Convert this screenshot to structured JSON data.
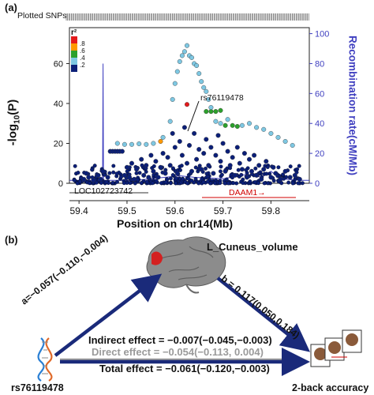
{
  "panel_a": {
    "label": "(a)",
    "plotted_snps_label": "Plotted SNPs",
    "r2_legend": {
      "title": "r²",
      "levels": [
        ".8",
        ".6",
        ".4",
        ".2"
      ],
      "colors": [
        "#e31a1c",
        "#ff9900",
        "#2ca02c",
        "#7ec8e3",
        "#0b1f78"
      ]
    },
    "y_left_label": "-log10(P)",
    "y_right_label": "Recombination rate(cM/Mb)",
    "lead_snp_label": "rs76119478",
    "genes": [
      {
        "name": "LOC102723742",
        "color": "#111111"
      },
      {
        "name": "DAAM1→",
        "color": "#d00000"
      }
    ],
    "accent_right_axis": "#4040c0"
  },
  "chart_data": {
    "type": "scatter",
    "title": "",
    "xlabel": "Position on chr14(Mb)",
    "ylabel": "-log10(P)",
    "y2label": "Recombination rate(cM/Mb)",
    "xlim": [
      59.38,
      59.88
    ],
    "ylim": [
      0,
      78
    ],
    "y2lim": [
      0,
      104
    ],
    "xticks": [
      "59.4",
      "59.5",
      "59.6",
      "59.7",
      "59.8"
    ],
    "xtick_values": [
      59.4,
      59.5,
      59.6,
      59.7,
      59.8
    ],
    "yticks": [
      0,
      20,
      40,
      60
    ],
    "y2ticks": [
      0,
      20,
      40,
      60,
      80,
      100
    ],
    "series": [
      {
        "r2": ">0.8",
        "color": "#e31a1c",
        "points": [
          [
            59.625,
            39.5
          ]
        ]
      },
      {
        "r2": "0.6-0.8",
        "color": "#ff9900",
        "points": [
          [
            59.57,
            21
          ]
        ]
      },
      {
        "r2": "0.4-0.6",
        "color": "#2ca02c",
        "points": [
          [
            59.665,
            36
          ],
          [
            59.675,
            36
          ],
          [
            59.685,
            36
          ],
          [
            59.695,
            36.5
          ],
          [
            59.705,
            29
          ],
          [
            59.72,
            29
          ],
          [
            59.73,
            28.5
          ]
        ]
      },
      {
        "r2": "0.2-0.4",
        "color": "#7ec8e3",
        "points": [
          [
            59.48,
            20
          ],
          [
            59.495,
            19.5
          ],
          [
            59.51,
            19.5
          ],
          [
            59.525,
            19.8
          ],
          [
            59.54,
            19.5
          ],
          [
            59.555,
            20
          ],
          [
            59.575,
            23
          ],
          [
            59.59,
            31
          ],
          [
            59.595,
            42
          ],
          [
            59.6,
            50
          ],
          [
            59.605,
            56
          ],
          [
            59.61,
            61
          ],
          [
            59.615,
            64
          ],
          [
            59.62,
            66
          ],
          [
            59.625,
            69
          ],
          [
            59.63,
            64
          ],
          [
            59.635,
            63
          ],
          [
            59.64,
            60
          ],
          [
            59.645,
            59
          ],
          [
            59.65,
            55
          ],
          [
            59.655,
            51
          ],
          [
            59.66,
            48
          ],
          [
            59.665,
            46
          ],
          [
            59.67,
            42
          ],
          [
            59.675,
            38
          ],
          [
            59.685,
            31
          ],
          [
            59.695,
            30
          ],
          [
            59.71,
            32
          ],
          [
            59.74,
            29
          ],
          [
            59.755,
            30
          ],
          [
            59.77,
            28
          ],
          [
            59.785,
            27
          ],
          [
            59.8,
            25
          ],
          [
            59.815,
            23
          ],
          [
            59.83,
            21
          ],
          [
            59.845,
            19
          ]
        ]
      },
      {
        "r2": "<0.2",
        "color": "#0b1f78",
        "points": [
          [
            59.41,
            2
          ],
          [
            59.415,
            5
          ],
          [
            59.42,
            3
          ],
          [
            59.43,
            1.5
          ],
          [
            59.44,
            4
          ],
          [
            59.445,
            2
          ],
          [
            59.45,
            6
          ],
          [
            59.46,
            3
          ],
          [
            59.465,
            16
          ],
          [
            59.47,
            16
          ],
          [
            59.475,
            16
          ],
          [
            59.48,
            16
          ],
          [
            59.485,
            16
          ],
          [
            59.49,
            16
          ],
          [
            59.495,
            4
          ],
          [
            59.5,
            8
          ],
          [
            59.505,
            3
          ],
          [
            59.51,
            10
          ],
          [
            59.515,
            2
          ],
          [
            59.52,
            7
          ],
          [
            59.53,
            12
          ],
          [
            59.535,
            4
          ],
          [
            59.54,
            9
          ],
          [
            59.545,
            3
          ],
          [
            59.55,
            14
          ],
          [
            59.555,
            6
          ],
          [
            59.56,
            11
          ],
          [
            59.565,
            3
          ],
          [
            59.57,
            8
          ],
          [
            59.575,
            15
          ],
          [
            59.58,
            5
          ],
          [
            59.585,
            13
          ],
          [
            59.59,
            9
          ],
          [
            59.595,
            25
          ],
          [
            59.6,
            18
          ],
          [
            59.605,
            5
          ],
          [
            59.61,
            21
          ],
          [
            59.615,
            14
          ],
          [
            59.62,
            28
          ],
          [
            59.625,
            10
          ],
          [
            59.63,
            19
          ],
          [
            59.635,
            6
          ],
          [
            59.64,
            25
          ],
          [
            59.645,
            12
          ],
          [
            59.65,
            17
          ],
          [
            59.655,
            7
          ],
          [
            59.66,
            15
          ],
          [
            59.665,
            22
          ],
          [
            59.67,
            9
          ],
          [
            59.675,
            18
          ],
          [
            59.68,
            5
          ],
          [
            59.685,
            14
          ],
          [
            59.69,
            24
          ],
          [
            59.695,
            11
          ],
          [
            59.7,
            20
          ],
          [
            59.705,
            6
          ],
          [
            59.71,
            16
          ],
          [
            59.715,
            9
          ],
          [
            59.72,
            13
          ],
          [
            59.725,
            4
          ],
          [
            59.73,
            18
          ],
          [
            59.735,
            10
          ],
          [
            59.74,
            7
          ],
          [
            59.745,
            15
          ],
          [
            59.75,
            3
          ],
          [
            59.755,
            12
          ],
          [
            59.76,
            6
          ],
          [
            59.765,
            14
          ],
          [
            59.77,
            4
          ],
          [
            59.775,
            9
          ],
          [
            59.78,
            2
          ],
          [
            59.785,
            7
          ],
          [
            59.79,
            11
          ],
          [
            59.8,
            3
          ],
          [
            59.805,
            8
          ],
          [
            59.81,
            5
          ],
          [
            59.82,
            2
          ],
          [
            59.83,
            6
          ],
          [
            59.84,
            3
          ],
          [
            59.85,
            4
          ],
          [
            59.86,
            2
          ]
        ]
      }
    ]
  },
  "panel_b": {
    "label": "(b)",
    "mediator_label": "L_Cuneus_volume",
    "path_a": "a=−0.057(−0.110,−0.004)",
    "path_b": "b = 0.117(0.050,0.184)",
    "indirect": "Indirect effect = −0.007(−0.045,−0.003)",
    "direct": "Direct effect = −0.054(−0.113, 0.004)",
    "total": "Total effect = −0.061(−0.120,−0.003)",
    "snp_label": "rs76119478",
    "outcome_label": "2-back accuracy",
    "arrow_color": "#1a2a7a",
    "direct_color": "#9a9a9a"
  }
}
